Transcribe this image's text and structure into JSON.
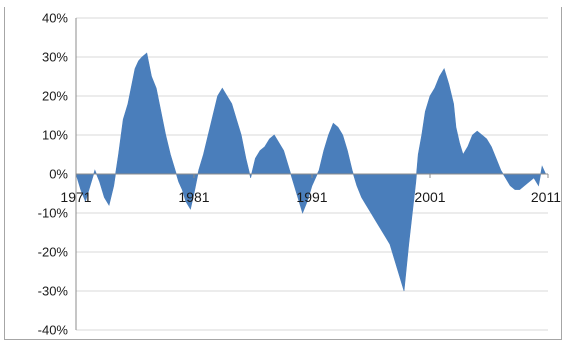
{
  "chart_data": {
    "type": "area",
    "title": "",
    "xlabel": "",
    "ylabel": "",
    "x_range": [
      1971,
      2011
    ],
    "ylim": [
      -40,
      40
    ],
    "y_unit": "%",
    "y_tick_labels": [
      "40%",
      "30%",
      "20%",
      "10%",
      "0%",
      "-10%",
      "-20%",
      "-30%",
      "-40%"
    ],
    "y_tick_values": [
      40,
      30,
      20,
      10,
      0,
      -10,
      -20,
      -30,
      -40
    ],
    "x_tick_labels": [
      "1971",
      "1981",
      "1991",
      "2001",
      "2011"
    ],
    "x_tick_values": [
      1971,
      1981,
      1991,
      2001,
      2011
    ],
    "grid": "horizontal",
    "legend": "none",
    "area_color": "#4a7ebb",
    "series": [
      {
        "x": [
          1971.0,
          1971.4,
          1971.8,
          1972.2,
          1972.6,
          1973.0,
          1973.4,
          1973.8,
          1974.2,
          1974.6,
          1975.0,
          1975.4,
          1975.8,
          1976.0,
          1976.3,
          1976.6,
          1977.0,
          1977.4,
          1977.8,
          1978.2,
          1978.6,
          1979.0,
          1979.4,
          1979.7,
          1980.0,
          1980.3,
          1980.7,
          1981.0,
          1981.4,
          1981.8,
          1982.2,
          1982.6,
          1983.0,
          1983.4,
          1983.8,
          1984.2,
          1984.6,
          1985.0,
          1985.4,
          1985.8,
          1986.2,
          1986.6,
          1987.0,
          1987.4,
          1987.8,
          1988.2,
          1988.6,
          1989.0,
          1989.4,
          1989.8,
          1990.2,
          1990.6,
          1991.0,
          1991.3,
          1991.6,
          1992.0,
          1992.4,
          1992.8,
          1993.2,
          1993.6,
          1994.0,
          1994.4,
          1994.8,
          1995.2,
          1995.6,
          1996.0,
          1996.4,
          1996.8,
          1997.2,
          1997.6,
          1998.0,
          1998.4,
          1998.8,
          1999.2,
          1999.5,
          1999.8,
          2000.0,
          2000.3,
          2000.6,
          2001.0,
          2001.4,
          2001.8,
          2002.2,
          2002.6,
          2003.0,
          2003.2,
          2003.5,
          2003.8,
          2004.2,
          2004.6,
          2005.0,
          2005.4,
          2005.8,
          2006.2,
          2006.6,
          2007.0,
          2007.4,
          2007.8,
          2008.2,
          2008.6,
          2009.0,
          2009.4,
          2009.8,
          2010.2,
          2010.5,
          2010.8,
          2011.0
        ],
        "y": [
          0,
          -4,
          -7,
          -3,
          1,
          -2,
          -6,
          -8,
          -3,
          5,
          14,
          18,
          24,
          27,
          29,
          30,
          31,
          25,
          22,
          16,
          10,
          5,
          1,
          -2,
          -4,
          -7,
          -9,
          -5,
          1,
          5,
          10,
          15,
          20,
          22,
          20,
          18,
          14,
          10,
          4,
          -1,
          4,
          6,
          7,
          9,
          10,
          8,
          6,
          2,
          -2,
          -6,
          -10,
          -7,
          -3,
          -1,
          1,
          6,
          10,
          13,
          12,
          10,
          6,
          1,
          -3,
          -6,
          -8,
          -10,
          -12,
          -14,
          -16,
          -18,
          -22,
          -26,
          -30,
          -18,
          -10,
          -2,
          5,
          10,
          16,
          20,
          22,
          25,
          27,
          23,
          18,
          12,
          8,
          5,
          7,
          10,
          11,
          10,
          9,
          7,
          4,
          1,
          -1,
          -3,
          -4,
          -4,
          -3,
          -2,
          -1,
          -3,
          2,
          0,
          0
        ]
      }
    ]
  }
}
